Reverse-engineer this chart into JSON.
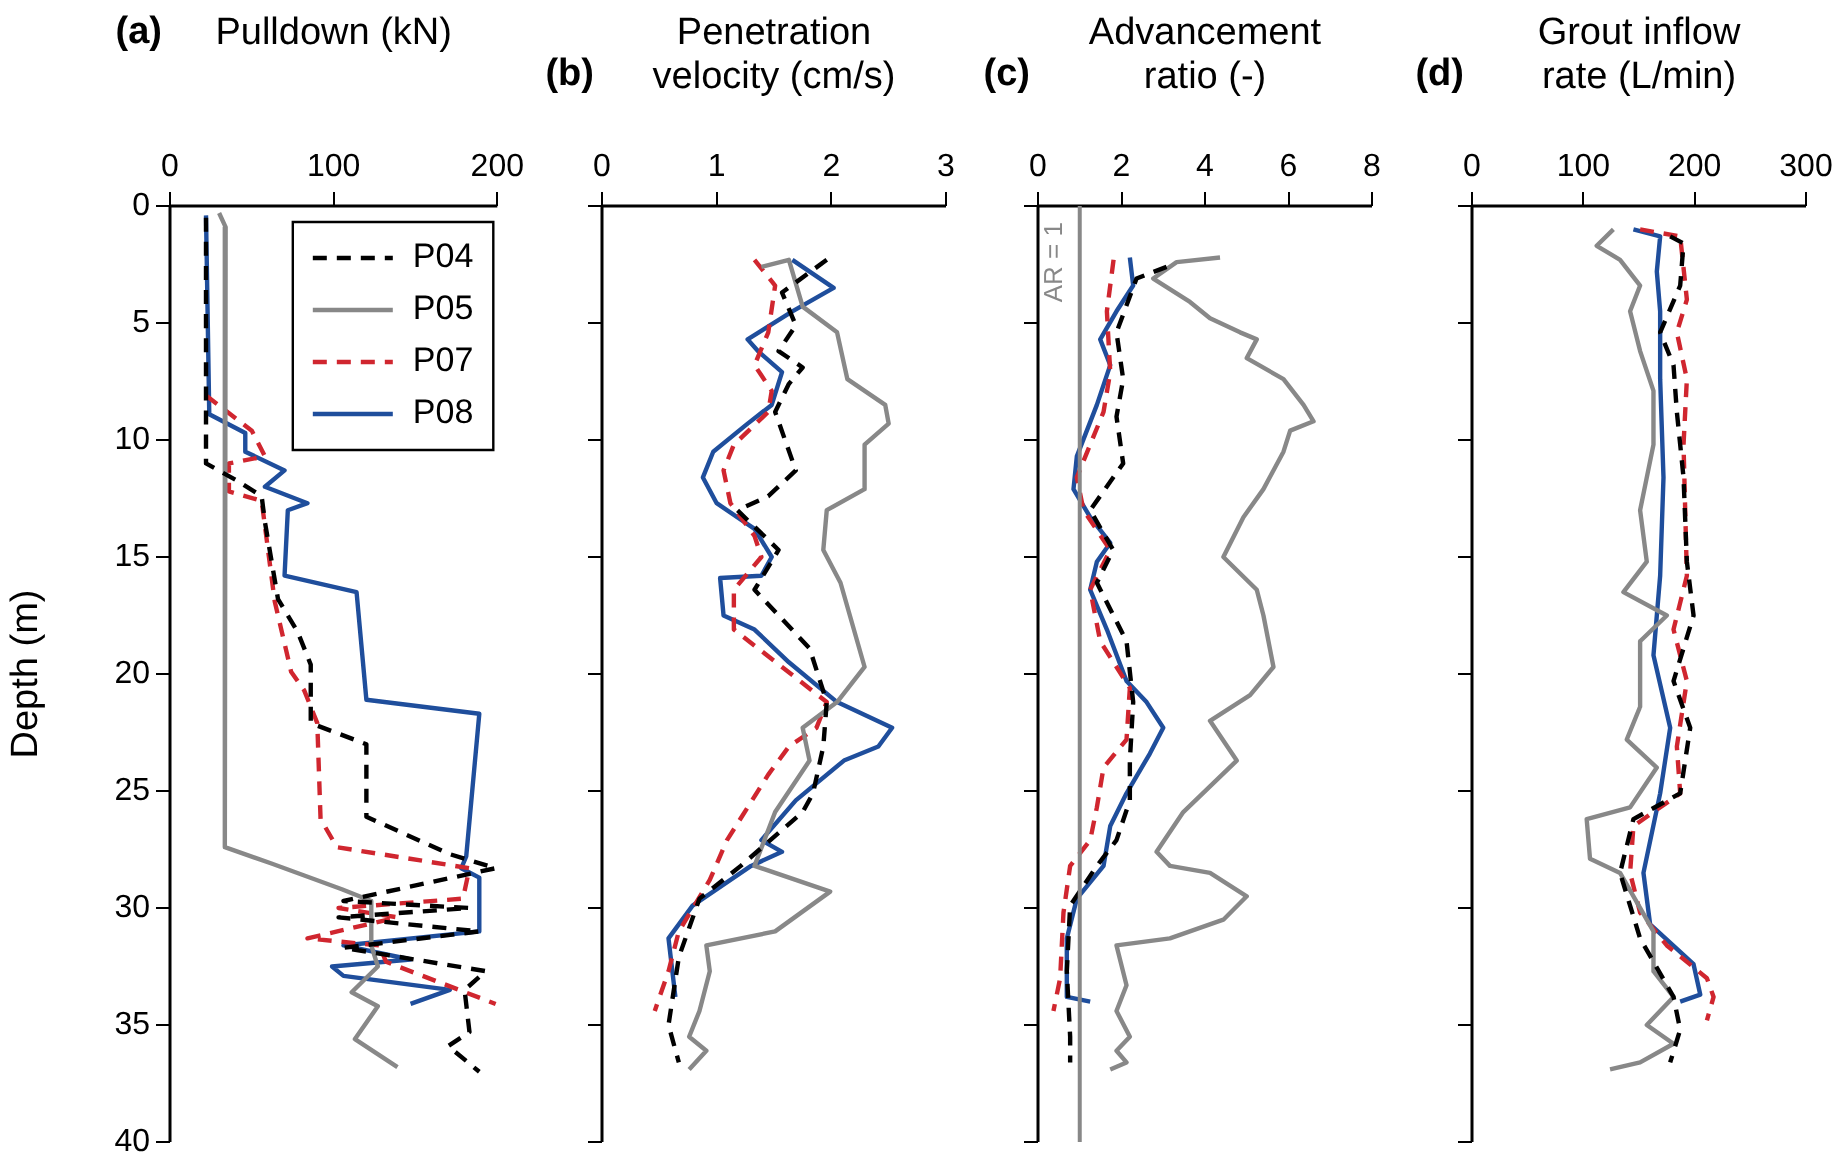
{
  "chart_data": [
    {
      "type": "line",
      "title": "(a)",
      "xlabel": "Pulldown (kN)",
      "ylabel": "Depth (m)",
      "xlim": [
        0,
        200
      ],
      "xticks": [
        0,
        100,
        200
      ],
      "ylim": [
        40,
        0
      ],
      "yticks": [
        0,
        5,
        10,
        15,
        20,
        25,
        30,
        35,
        40
      ],
      "legend": "top right",
      "series": [
        {
          "name": "P04",
          "color": "#000000",
          "line_style": "dashed",
          "x": [
            22,
            22,
            40,
            56,
            58,
            66,
            78,
            86,
            86,
            120,
            120,
            171,
            199,
            106,
            183,
            103,
            189,
            106,
            193,
            180,
            183,
            170,
            189
          ],
          "values": [
            0.5,
            11,
            11.7,
            12.4,
            13.5,
            16.8,
            18.2,
            19.6,
            22.1,
            23,
            26.1,
            27.7,
            28.3,
            29.7,
            30,
            30.4,
            31,
            31.7,
            32.7,
            33.5,
            35.3,
            35.9,
            37
          ]
        },
        {
          "name": "P05",
          "color": "#888888",
          "line_style": "solid",
          "x": [
            30,
            34,
            33,
            34,
            62,
            105,
            123,
            123,
            127,
            111,
            127,
            113,
            139
          ],
          "values": [
            0.3,
            0.9,
            5.7,
            27.4,
            28.1,
            29.2,
            29.7,
            31.6,
            32.5,
            33.6,
            34.2,
            35.6,
            36.8
          ]
        },
        {
          "name": "P07",
          "color": "#d0262f",
          "line_style": "dashed",
          "x": [
            22,
            50,
            58,
            36,
            36,
            56,
            64,
            74,
            82,
            90,
            92,
            102,
            183,
            179,
            103,
            139,
            84,
            128,
            132,
            199
          ],
          "values": [
            8.1,
            9.6,
            10.7,
            11,
            12.2,
            12.6,
            16.9,
            19.9,
            20.7,
            22.1,
            26.2,
            27.4,
            28.3,
            29.6,
            30,
            30.4,
            31.3,
            31.6,
            32.3,
            34.1
          ]
        },
        {
          "name": "P08",
          "color": "#1f4e9c",
          "line_style": "solid",
          "x": [
            22,
            24,
            46,
            46,
            70,
            58,
            84,
            72,
            70,
            114,
            120,
            189,
            181,
            178,
            189,
            189,
            106,
            147,
            99,
            106,
            171,
            147
          ],
          "values": [
            0.4,
            8.9,
            9.7,
            10.5,
            11.3,
            12,
            12.7,
            13,
            15.8,
            16.5,
            21.1,
            21.7,
            27.8,
            28.3,
            28.7,
            31,
            31.6,
            32.2,
            32.5,
            32.9,
            33.5,
            34.1
          ]
        }
      ]
    },
    {
      "type": "line",
      "title": "(b)",
      "xlabel": "Penetration\nvelocity (cm/s)",
      "xlim": [
        0,
        3
      ],
      "xticks": [
        0,
        1,
        2,
        3
      ],
      "ylim": [
        40,
        0
      ],
      "yticks": [
        0,
        5,
        10,
        15,
        20,
        25,
        30,
        35,
        40
      ],
      "tick_labels": "x",
      "series": [
        {
          "color": "#000000",
          "line_style": "dashed",
          "x": [
            1.96,
            1.57,
            1.69,
            1.54,
            1.75,
            1.63,
            1.51,
            1.69,
            1.45,
            1.18,
            1.54,
            1.33,
            1.81,
            1.96,
            1.93,
            1.84,
            1.75,
            1.21,
            0.85,
            0.67,
            0.58,
            0.67
          ],
          "values": [
            2.3,
            3.7,
            5.1,
            6.2,
            6.9,
            7.6,
            8.8,
            11.3,
            12.4,
            13,
            14.7,
            16.4,
            18.9,
            21.2,
            23.1,
            25.1,
            25.9,
            28.2,
            29.6,
            32.1,
            35,
            36.6
          ]
        },
        {
          "color": "#888888",
          "line_style": "solid",
          "x": [
            1.39,
            1.63,
            1.75,
            2.05,
            2.14,
            2.47,
            2.5,
            2.29,
            2.29,
            1.96,
            1.93,
            2.08,
            2.29,
            2.05,
            1.75,
            1.81,
            1.51,
            1.33,
            1.99,
            1.51,
            0.91,
            0.94,
            0.85,
            0.76,
            0.91,
            0.76
          ],
          "values": [
            2.6,
            2.3,
            4.3,
            5.4,
            7.4,
            8.5,
            9.3,
            10.2,
            12.1,
            13,
            14.7,
            16.1,
            19.7,
            21.2,
            22.3,
            23.7,
            25.9,
            28.2,
            29.3,
            31,
            31.6,
            32.7,
            34.4,
            35.5,
            36.1,
            36.9
          ]
        },
        {
          "color": "#d0262f",
          "line_style": "dashed",
          "x": [
            1.33,
            1.51,
            1.45,
            1.33,
            1.48,
            1.45,
            1.15,
            1.06,
            1.12,
            1.33,
            1.39,
            1.15,
            1.15,
            1.57,
            1.96,
            1.87,
            1.63,
            1.45,
            1.27,
            1.09,
            0.94,
            0.67,
            0.58,
            0.46
          ],
          "values": [
            2.3,
            3.4,
            5.4,
            6.8,
            7.9,
            8.8,
            10.2,
            11.3,
            12.7,
            14.1,
            15,
            16.4,
            18.1,
            19.7,
            21.2,
            22.3,
            23.1,
            24.3,
            25.7,
            27.1,
            28.8,
            31,
            32.7,
            34.4
          ]
        },
        {
          "color": "#1f4e9c",
          "line_style": "solid",
          "x": [
            1.66,
            2.02,
            1.66,
            1.27,
            1.36,
            1.57,
            1.48,
            1.27,
            0.97,
            0.88,
            1,
            1.33,
            1.48,
            1.39,
            1.03,
            1.06,
            1.33,
            1.63,
            2.05,
            2.53,
            2.41,
            2.11,
            1.69,
            1.39,
            1.57,
            1.3,
            0.79,
            0.58,
            0.64
          ],
          "values": [
            2.3,
            3.5,
            4.5,
            5.7,
            6.2,
            7.1,
            8.5,
            9.3,
            10.5,
            11.6,
            12.7,
            13.8,
            15,
            15.8,
            15.9,
            17.5,
            18.1,
            19.5,
            21.2,
            22.3,
            23.1,
            23.7,
            25.4,
            27.1,
            27.6,
            28.2,
            29.9,
            31.3,
            33.8
          ]
        }
      ]
    },
    {
      "type": "line",
      "title": "(c)",
      "xlabel": "Advancement\nratio (-)",
      "xlim": [
        0,
        8
      ],
      "xticks": [
        0,
        2,
        4,
        6,
        8
      ],
      "ylim": [
        40,
        0
      ],
      "yticks": [
        0,
        5,
        10,
        15,
        20,
        25,
        30,
        35,
        40
      ],
      "tick_labels": "x",
      "ref_lines": [
        {
          "axis": "x",
          "value": 1,
          "label": "AR = 1",
          "color": "#888888"
        }
      ],
      "series": [
        {
          "color": "#000000",
          "line_style": "dashed",
          "x": [
            3.08,
            2.36,
            1.88,
            2.04,
            1.88,
            2.04,
            1.25,
            1.8,
            1.41,
            2.12,
            2.28,
            2.2,
            2.2,
            1.88,
            1.41,
            0.77,
            0.69,
            0.77,
            0.77
          ],
          "values": [
            2.6,
            3.1,
            5.4,
            7.4,
            9,
            11,
            13,
            14.7,
            16.1,
            18.6,
            21.2,
            23.7,
            25.4,
            27.1,
            28.2,
            29.9,
            32.7,
            35.5,
            36.6
          ]
        },
        {
          "color": "#888888",
          "line_style": "solid",
          "x": [
            4.36,
            3.32,
            2.76,
            3.64,
            4.12,
            4.84,
            5.24,
            5,
            5.88,
            6.36,
            6.6,
            6.04,
            5.88,
            5.4,
            4.92,
            4.44,
            5.24,
            5.4,
            5.64,
            5.08,
            4.12,
            4.76,
            4.12,
            3.48,
            2.84,
            3.16,
            4.12,
            5,
            4.44,
            3.16,
            1.88,
            2.12,
            1.88,
            2.2,
            1.88,
            2.12,
            1.73
          ],
          "values": [
            2.2,
            2.4,
            3.1,
            4.1,
            4.8,
            5.4,
            5.7,
            6.5,
            7.4,
            8.5,
            9.2,
            9.6,
            10.5,
            12.1,
            13.3,
            15,
            16.4,
            17.5,
            19.7,
            20.9,
            22,
            23.7,
            24.8,
            25.9,
            27.6,
            28.2,
            28.5,
            29.5,
            30.5,
            31.3,
            31.6,
            33.3,
            34.4,
            35.5,
            36.1,
            36.6,
            36.9
          ]
        },
        {
          "color": "#d0262f",
          "line_style": "dashed",
          "x": [
            1.81,
            1.65,
            1.73,
            1.57,
            0.93,
            1.09,
            1.73,
            1.25,
            1.49,
            2.2,
            2.12,
            1.57,
            1.41,
            1.25,
            0.77,
            0.61,
            0.53,
            0.37
          ],
          "values": [
            2.3,
            4.5,
            7.1,
            8.8,
            11.6,
            13,
            14.7,
            16.4,
            18.6,
            20.6,
            22.8,
            24,
            25.7,
            27.1,
            28.2,
            30.2,
            33,
            34.4
          ]
        },
        {
          "color": "#1f4e9c",
          "line_style": "solid",
          "x": [
            2.2,
            2.28,
            1.88,
            1.49,
            1.73,
            1.41,
            0.93,
            0.85,
            1.25,
            1.73,
            1.41,
            1.25,
            1.65,
            2.12,
            2.6,
            3,
            2.68,
            2.12,
            1.73,
            1.57,
            0.93,
            0.69,
            0.69,
            1.25
          ],
          "values": [
            2.2,
            3.4,
            4.5,
            5.7,
            6.8,
            8.5,
            10.7,
            12.1,
            13.3,
            14.4,
            15.2,
            16.4,
            18.1,
            20.3,
            21.2,
            22.3,
            23.4,
            25.1,
            26.5,
            28.2,
            29.6,
            31.3,
            33.8,
            34
          ]
        }
      ]
    },
    {
      "type": "line",
      "title": "(d)",
      "xlabel": "Grout inflow\nrate (L/min)",
      "xlim": [
        0,
        300
      ],
      "xticks": [
        0,
        100,
        200,
        300
      ],
      "ylim": [
        40,
        0
      ],
      "yticks": [
        0,
        5,
        10,
        15,
        20,
        25,
        30,
        35,
        40
      ],
      "tick_labels": "x",
      "series": [
        {
          "color": "#000000",
          "line_style": "dashed",
          "x": [
            178,
            190,
            187,
            169,
            181,
            184,
            190,
            193,
            199,
            181,
            196,
            187,
            145,
            133,
            151,
            181,
            187,
            178
          ],
          "values": [
            1.3,
            1.6,
            3.4,
            5.4,
            6.8,
            8.8,
            11.6,
            15.2,
            17.5,
            20.3,
            22.3,
            25.1,
            26.2,
            28.5,
            31.3,
            33.8,
            35.2,
            36.6
          ]
        },
        {
          "color": "#888888",
          "line_style": "solid",
          "x": [
            127,
            112,
            133,
            151,
            142,
            151,
            163,
            163,
            151,
            157,
            136,
            175,
            151,
            151,
            139,
            166,
            142,
            103,
            106,
            133,
            163,
            163,
            181,
            157,
            181,
            151,
            124
          ],
          "values": [
            1,
            1.7,
            2.3,
            3.4,
            4.5,
            6.2,
            7.9,
            10.2,
            13,
            15.2,
            16.5,
            17.5,
            18.6,
            21.4,
            22.8,
            24,
            25.7,
            26.2,
            27.9,
            28.5,
            31,
            32.7,
            33.8,
            35,
            35.8,
            36.6,
            36.9
          ]
        },
        {
          "color": "#d0262f",
          "line_style": "dashed",
          "x": [
            151,
            187,
            193,
            184,
            193,
            190,
            193,
            181,
            193,
            184,
            187,
            145,
            142,
            151,
            175,
            211,
            217,
            211
          ],
          "values": [
            1,
            1.3,
            4,
            5.4,
            7.4,
            10.2,
            15.8,
            18.1,
            20.3,
            23.1,
            25.1,
            26.5,
            28.5,
            30.2,
            31.6,
            33,
            33.8,
            34.8
          ]
        },
        {
          "color": "#1f4e9c",
          "line_style": "solid",
          "x": [
            145,
            169,
            166,
            169,
            169,
            172,
            169,
            163,
            178,
            169,
            154,
            160,
            199,
            205,
            187
          ],
          "values": [
            1,
            1.3,
            2.8,
            4.5,
            7.4,
            11.6,
            15.8,
            19.2,
            22.3,
            25.1,
            28.5,
            30.7,
            32.4,
            33.7,
            34
          ]
        }
      ]
    }
  ]
}
